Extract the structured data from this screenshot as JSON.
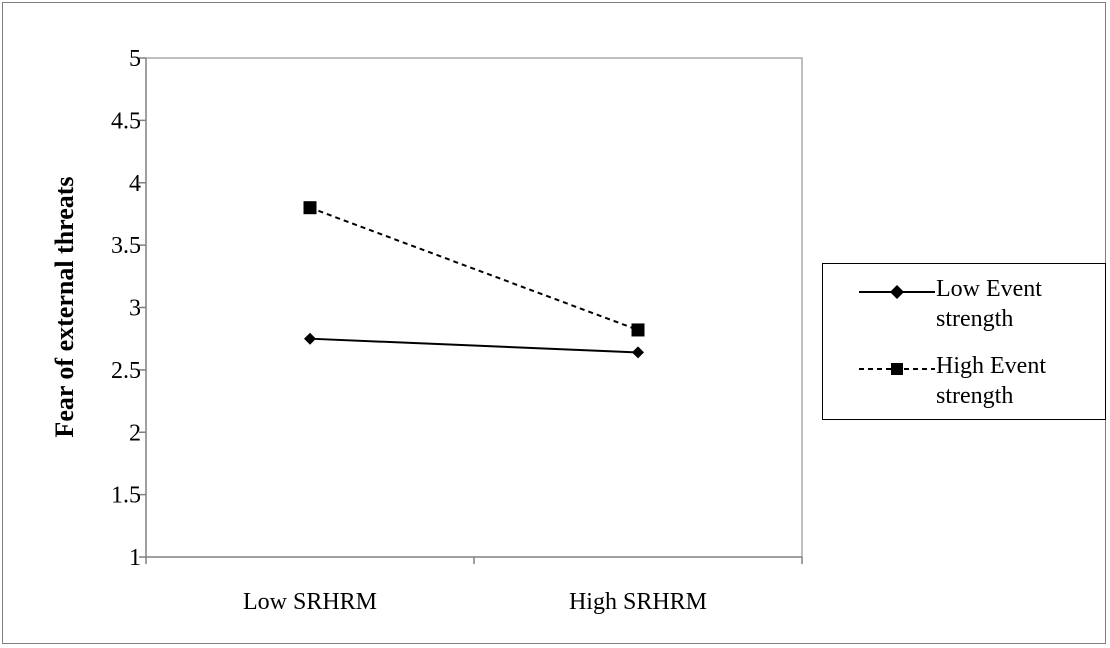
{
  "chart_data": {
    "type": "line",
    "categories": [
      "Low SRHRM",
      "High SRHRM"
    ],
    "series": [
      {
        "name": "Low Event strength",
        "values": [
          2.75,
          2.64
        ],
        "line_style": "solid",
        "marker": "diamond",
        "color": "#000000"
      },
      {
        "name": "High Event strength",
        "values": [
          3.8,
          2.82
        ],
        "line_style": "dashed",
        "marker": "square",
        "color": "#000000"
      }
    ],
    "title": "",
    "xlabel": "",
    "ylabel": "Fear of external threats",
    "ylim": [
      1,
      5
    ],
    "yticks": [
      "1",
      "1.5",
      "2",
      "2.5",
      "3",
      "3.5",
      "4",
      "4.5",
      "5"
    ],
    "grid": false,
    "legend_position": "right"
  },
  "legend": {
    "entries": [
      {
        "line1": "Low Event",
        "line2": "strength"
      },
      {
        "line1": "High Event",
        "line2": "strength"
      }
    ]
  }
}
